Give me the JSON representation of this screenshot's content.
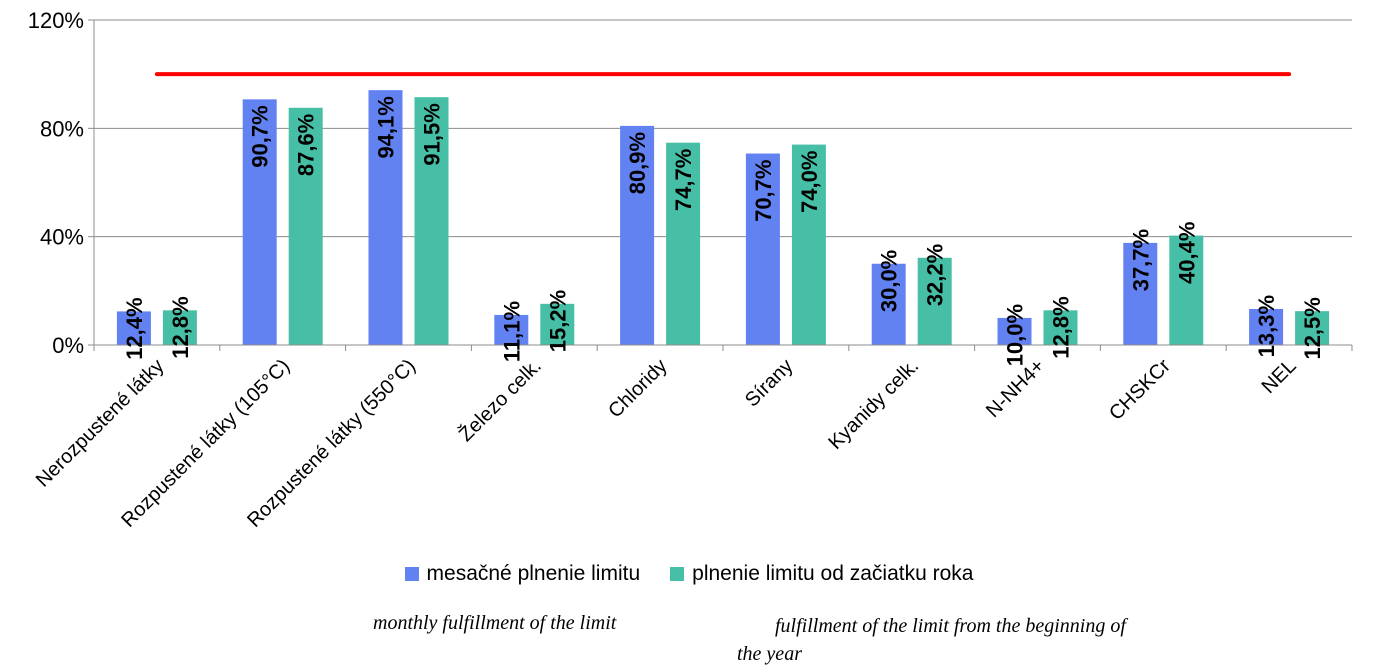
{
  "chart_data": {
    "type": "bar",
    "categories": [
      "Nerozpustené látky",
      "Rozpustené látky (105°C)",
      "Rozpustené látky (550°C)",
      "Železo celk.",
      "Chloridy",
      "Síran​y",
      "Kyanidy celk.",
      "N-NH4+",
      "CHSKCr",
      "NEL"
    ],
    "series": [
      {
        "name": "mesačné plnenie limitu",
        "color": "#6382f2",
        "values": [
          12.4,
          90.7,
          94.1,
          11.1,
          80.9,
          70.7,
          30.0,
          10.0,
          37.7,
          13.3
        ],
        "labels": [
          "12,4%",
          "90,7%",
          "94,1%",
          "11,1%",
          "80,9%",
          "70,7%",
          "30,0%",
          "10,0%",
          "37,7%",
          "13,3%"
        ]
      },
      {
        "name": "plnenie limitu od začiatku roka",
        "color": "#46bfa6",
        "values": [
          12.8,
          87.6,
          91.5,
          15.2,
          74.7,
          74.0,
          32.2,
          12.8,
          40.4,
          12.5
        ],
        "labels": [
          "12,8%",
          "87,6%",
          "91,5%",
          "15,2%",
          "74,7%",
          "74,0%",
          "32,2%",
          "12,8%",
          "40,4%",
          "12,5%"
        ]
      }
    ],
    "limit_line": {
      "value": 100,
      "color": "#ff0000"
    },
    "yticks": [
      0,
      40,
      80,
      120
    ],
    "ytick_labels": [
      "0%",
      "40%",
      "80%",
      "120%"
    ],
    "ylim": [
      0,
      120
    ],
    "grid": true,
    "legend_position": "bottom",
    "title": "",
    "xlabel": "",
    "ylabel": ""
  },
  "translations": {
    "series1": "monthly fulfillment of the limit",
    "series2": "fulfillment of the limit from the beginning of the year"
  }
}
